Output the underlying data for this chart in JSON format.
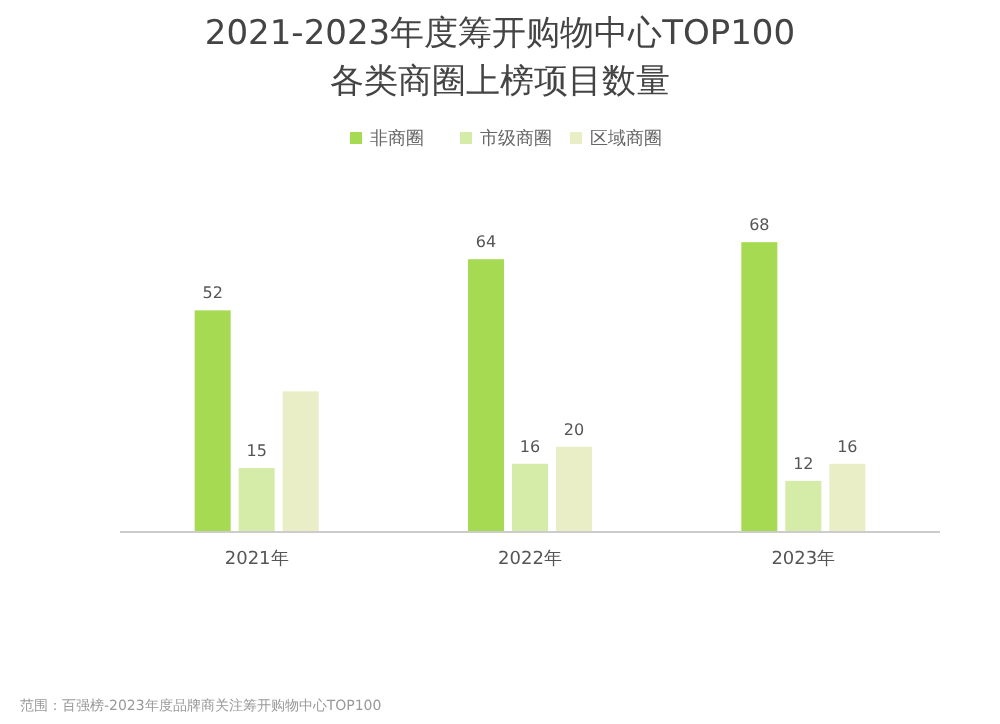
{
  "chart_data": {
    "type": "bar",
    "title": "2021-2023年度筹开购物中心TOP100\n各类商圈上榜项目数量",
    "categories": [
      "2021年",
      "2022年",
      "2023年"
    ],
    "series": [
      {
        "name": "非商圈",
        "color": "#a6da52",
        "values": [
          52,
          64,
          68
        ],
        "value_labels": [
          "52",
          "64",
          "68"
        ]
      },
      {
        "name": "市级商圈",
        "color": "#d5eba8",
        "values": [
          15,
          16,
          12
        ],
        "value_labels": [
          "15",
          "16",
          "12"
        ]
      },
      {
        "name": "区域商圈",
        "color": "#e9eec6",
        "values": [
          33,
          20,
          16
        ],
        "value_labels": [
          null,
          "20",
          "16"
        ]
      }
    ],
    "tick_labels": "x",
    "legend": "top",
    "annotations": [
      "范围：百强榜-2023年度品牌商关注筹开购物中心TOP100"
    ]
  }
}
